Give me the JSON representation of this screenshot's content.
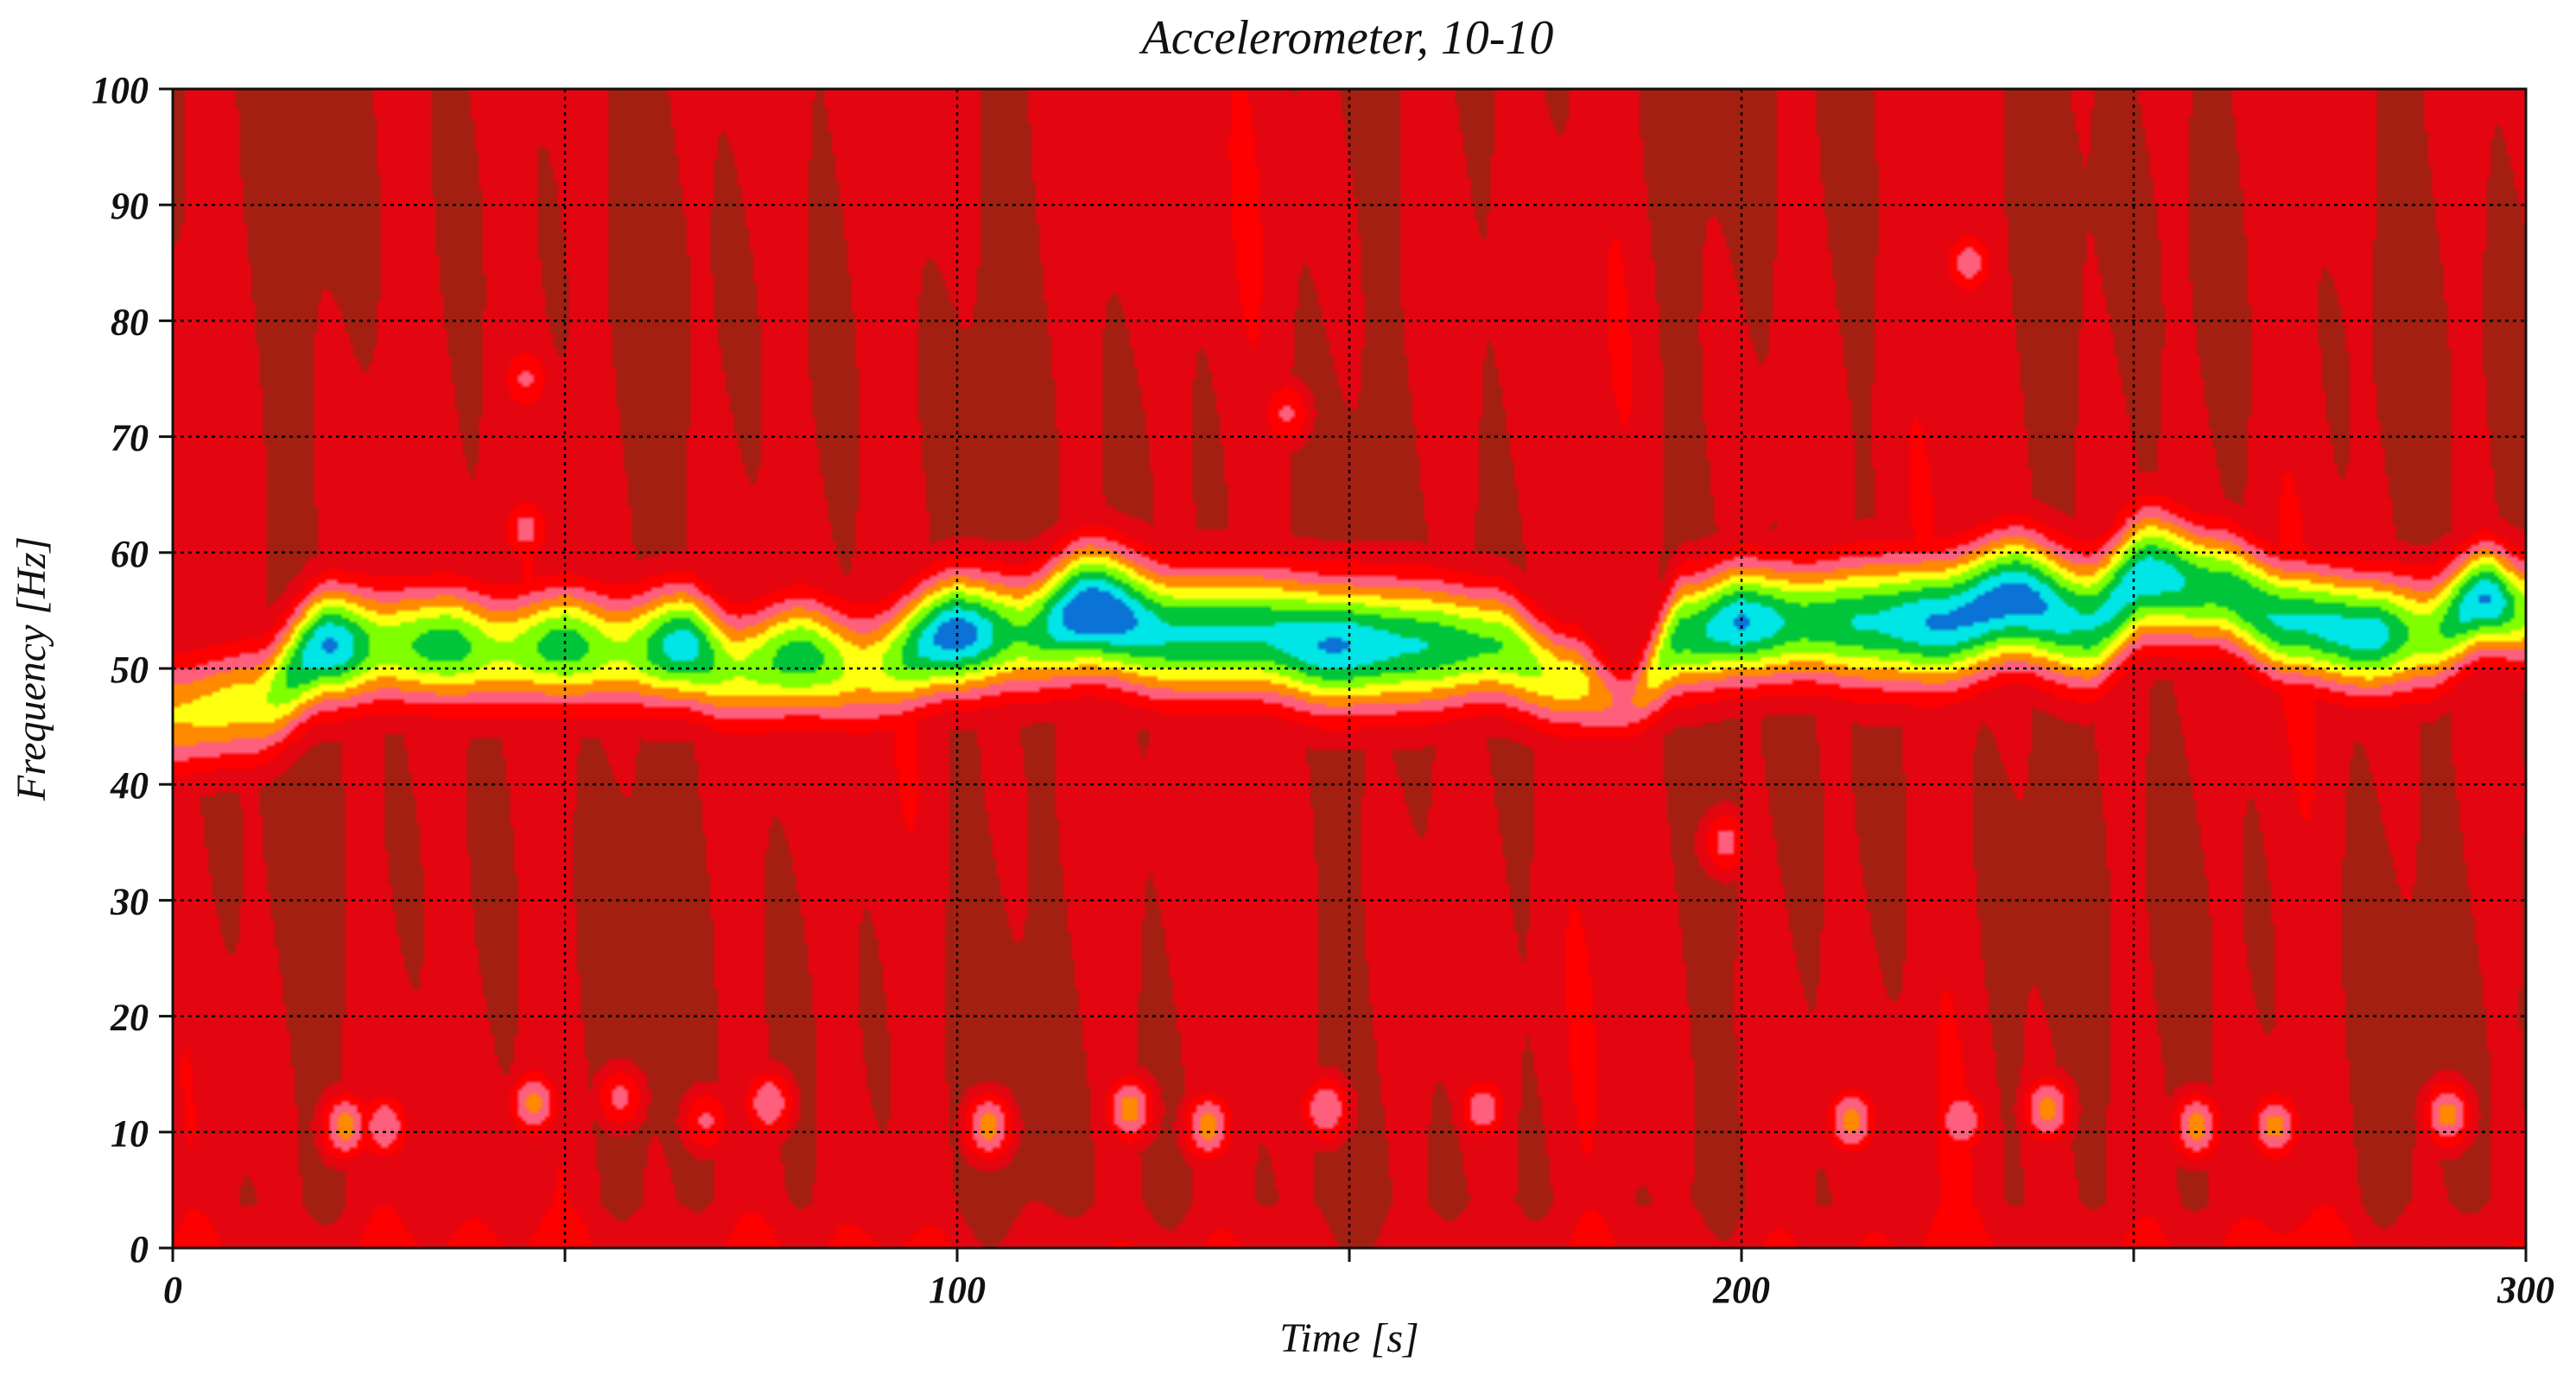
{
  "chart_data": {
    "type": "heatmap",
    "title": "Accelerometer, 10-10",
    "xlabel": "Time [s]",
    "ylabel": "Frequency [Hz]",
    "xlim": [
      0,
      300
    ],
    "ylim": [
      0,
      100
    ],
    "x_ticks": [
      0,
      100,
      200,
      300
    ],
    "y_ticks": [
      0,
      10,
      20,
      30,
      40,
      50,
      60,
      70,
      80,
      90,
      100
    ],
    "x_grid": [
      50,
      100,
      150,
      200,
      250
    ],
    "y_grid": [
      10,
      20,
      30,
      40,
      50,
      60,
      70,
      80,
      90
    ],
    "grid": true,
    "legend": "none",
    "colormap": [
      "#a31f12",
      "#e30610",
      "#fe0000",
      "#fe5f7d",
      "#ff8a00",
      "#ffff10",
      "#7fff00",
      "#00c43a",
      "#00e5e5",
      "#0b72d6"
    ],
    "ridges": [
      {
        "t": 0,
        "f": 46,
        "level": 4.5,
        "width": 5
      },
      {
        "t": 10,
        "f": 47,
        "level": 5,
        "width": 5
      },
      {
        "t": 20,
        "f": 52,
        "level": 8.5,
        "width": 5
      },
      {
        "t": 27,
        "f": 52,
        "level": 6,
        "width": 5
      },
      {
        "t": 35,
        "f": 52,
        "level": 7,
        "width": 5
      },
      {
        "t": 42,
        "f": 51.5,
        "level": 5.5,
        "width": 5
      },
      {
        "t": 50,
        "f": 52,
        "level": 7,
        "width": 5
      },
      {
        "t": 57,
        "f": 51.5,
        "level": 5.5,
        "width": 5
      },
      {
        "t": 65,
        "f": 52,
        "level": 8,
        "width": 5
      },
      {
        "t": 72,
        "f": 50,
        "level": 5.5,
        "width": 5
      },
      {
        "t": 80,
        "f": 51,
        "level": 7,
        "width": 5
      },
      {
        "t": 88,
        "f": 50,
        "level": 5,
        "width": 5
      },
      {
        "t": 100,
        "f": 53,
        "level": 9,
        "width": 5
      },
      {
        "t": 108,
        "f": 53,
        "level": 6.5,
        "width": 5
      },
      {
        "t": 117,
        "f": 55,
        "level": 9.5,
        "width": 5.5
      },
      {
        "t": 128,
        "f": 53,
        "level": 7.5,
        "width": 5.5
      },
      {
        "t": 138,
        "f": 53,
        "level": 7.5,
        "width": 5.5
      },
      {
        "t": 148,
        "f": 52,
        "level": 8.5,
        "width": 5.5
      },
      {
        "t": 158,
        "f": 52,
        "level": 7.5,
        "width": 5.5
      },
      {
        "t": 168,
        "f": 52,
        "level": 6.5,
        "width": 5
      },
      {
        "t": 178,
        "f": 49,
        "level": 5,
        "width": 4.5
      },
      {
        "t": 185,
        "f": 47,
        "level": 3.2,
        "width": 3.5
      },
      {
        "t": 193,
        "f": 53,
        "level": 7,
        "width": 5
      },
      {
        "t": 200,
        "f": 54,
        "level": 8.5,
        "width": 5
      },
      {
        "t": 208,
        "f": 54,
        "level": 7,
        "width": 5
      },
      {
        "t": 216,
        "f": 54,
        "level": 7.5,
        "width": 5.5
      },
      {
        "t": 225,
        "f": 54,
        "level": 8.5,
        "width": 5.5
      },
      {
        "t": 235,
        "f": 56,
        "level": 9,
        "width": 5.5
      },
      {
        "t": 244,
        "f": 54,
        "level": 7.5,
        "width": 5.5
      },
      {
        "t": 252,
        "f": 58,
        "level": 8,
        "width": 5.5
      },
      {
        "t": 260,
        "f": 57,
        "level": 7,
        "width": 5
      },
      {
        "t": 270,
        "f": 54,
        "level": 7.5,
        "width": 5
      },
      {
        "t": 280,
        "f": 53,
        "level": 8,
        "width": 5
      },
      {
        "t": 287,
        "f": 53,
        "level": 6,
        "width": 5
      },
      {
        "t": 295,
        "f": 56,
        "level": 8.5,
        "width": 4.5
      },
      {
        "t": 300,
        "f": 55,
        "level": 6,
        "width": 4.5
      }
    ],
    "spots": [
      {
        "t": 22,
        "f": 10.5,
        "level": 4.5
      },
      {
        "t": 27,
        "f": 10.5,
        "level": 4
      },
      {
        "t": 46,
        "f": 12.5,
        "level": 4.3
      },
      {
        "t": 57,
        "f": 13,
        "level": 3.3
      },
      {
        "t": 68,
        "f": 11,
        "level": 3.2
      },
      {
        "t": 76,
        "f": 12.5,
        "level": 4
      },
      {
        "t": 104,
        "f": 10.5,
        "level": 4.5
      },
      {
        "t": 122,
        "f": 12,
        "level": 4.5
      },
      {
        "t": 132,
        "f": 10.5,
        "level": 4.5
      },
      {
        "t": 147,
        "f": 12,
        "level": 4
      },
      {
        "t": 167,
        "f": 12,
        "level": 3.7
      },
      {
        "t": 214,
        "f": 11,
        "level": 4.4
      },
      {
        "t": 228,
        "f": 11,
        "level": 4
      },
      {
        "t": 239,
        "f": 12,
        "level": 4.4
      },
      {
        "t": 258,
        "f": 10.5,
        "level": 4.5
      },
      {
        "t": 268,
        "f": 10.5,
        "level": 4.4
      },
      {
        "t": 290,
        "f": 11.5,
        "level": 4.4
      },
      {
        "t": 229,
        "f": 85,
        "level": 3.5
      },
      {
        "t": 45,
        "f": 62,
        "level": 3.4
      },
      {
        "t": 45,
        "f": 75,
        "level": 3.2
      },
      {
        "t": 142,
        "f": 72,
        "level": 3.2
      },
      {
        "t": 198,
        "f": 35,
        "level": 3.4
      },
      {
        "t": 250,
        "f": 62,
        "level": 3.4
      }
    ]
  }
}
